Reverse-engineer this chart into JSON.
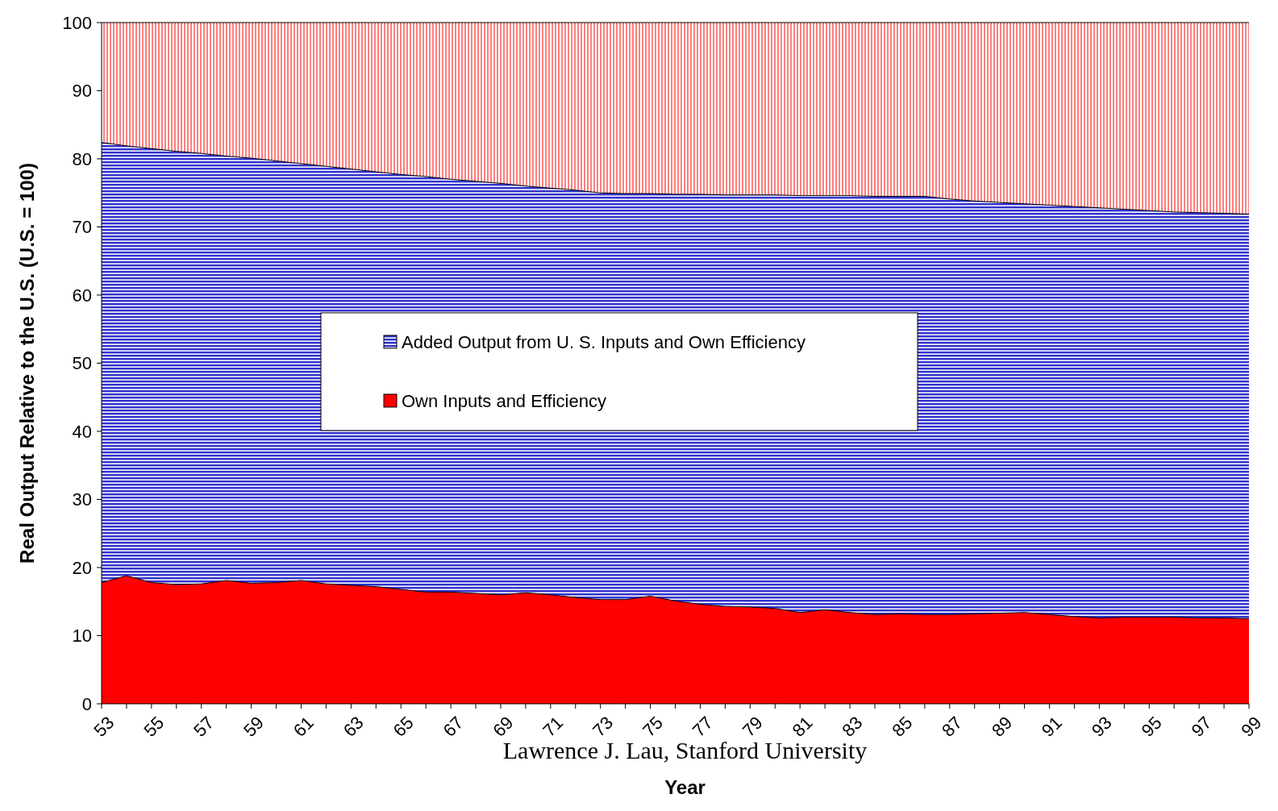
{
  "chart_data": {
    "type": "area",
    "stacked": true,
    "ylabel": "Real Output Relative to the U.S. (U.S. = 100)",
    "xlabel": "Year",
    "annotations": [
      "Lawrence J. Lau, Stanford University"
    ],
    "categories": [
      "53",
      null,
      "55",
      null,
      "57",
      null,
      "59",
      null,
      "61",
      null,
      "63",
      null,
      "65",
      null,
      "67",
      null,
      "69",
      null,
      "71",
      null,
      "73",
      null,
      "75",
      null,
      "77",
      null,
      "79",
      null,
      "81",
      null,
      "83",
      null,
      "85",
      null,
      "87",
      null,
      "89",
      null,
      "91",
      null,
      "93",
      null,
      "95",
      null,
      "97",
      null,
      "99"
    ],
    "series": [
      {
        "name": "Own Inputs and Efficiency",
        "color": "#ff0000",
        "values": [
          17.8,
          18.8,
          17.8,
          17.5,
          17.6,
          18.1,
          17.7,
          17.8,
          18.1,
          17.6,
          17.4,
          17.2,
          16.8,
          16.4,
          16.4,
          16.2,
          16.0,
          16.3,
          16.0,
          15.6,
          15.3,
          15.3,
          15.8,
          15.1,
          14.6,
          14.3,
          14.2,
          14.0,
          13.4,
          13.8,
          13.4,
          13.1,
          13.2,
          13.1,
          13.1,
          13.2,
          13.3,
          13.4,
          13.1,
          12.8,
          12.6,
          12.7,
          12.7,
          12.7,
          12.6,
          12.6,
          12.5
        ]
      },
      {
        "name": "Added Output from U. S. Inputs and Own Efficiency",
        "color": "#3333cc",
        "values": [
          64.6,
          63.1,
          63.7,
          63.6,
          63.2,
          62.3,
          62.4,
          61.9,
          61.2,
          61.3,
          61.1,
          60.9,
          60.9,
          61.0,
          60.6,
          60.5,
          60.4,
          59.7,
          59.7,
          59.8,
          59.7,
          59.6,
          59.1,
          59.7,
          60.2,
          60.4,
          60.5,
          60.7,
          61.2,
          60.8,
          61.2,
          61.4,
          61.3,
          61.4,
          61.0,
          60.6,
          60.3,
          60.0,
          60.1,
          60.2,
          60.2,
          59.9,
          59.7,
          59.5,
          59.5,
          59.4,
          59.4
        ]
      },
      {
        "color": "#ff8080",
        "values": [
          17.6,
          18.1,
          18.5,
          18.9,
          19.2,
          19.6,
          19.9,
          20.3,
          20.7,
          21.1,
          21.5,
          21.9,
          22.3,
          22.6,
          23.0,
          23.3,
          23.6,
          24.0,
          24.3,
          24.6,
          25.0,
          25.1,
          25.1,
          25.2,
          25.2,
          25.3,
          25.3,
          25.3,
          25.4,
          25.4,
          25.4,
          25.5,
          25.5,
          25.5,
          25.9,
          26.2,
          26.4,
          26.6,
          26.8,
          27.0,
          27.2,
          27.4,
          27.6,
          27.8,
          27.9,
          28.0,
          28.1
        ]
      }
    ],
    "ylim": [
      0,
      100
    ],
    "yticks": [
      0,
      10,
      20,
      30,
      40,
      50,
      60,
      70,
      80,
      90,
      100
    ],
    "grid": false,
    "legend": "center"
  }
}
